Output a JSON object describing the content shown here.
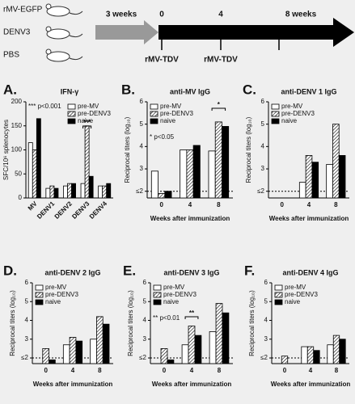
{
  "timeline": {
    "groups": [
      "rMV-EGFP",
      "DENV3",
      "PBS"
    ],
    "interval": "3 weeks",
    "weeks": [
      "0",
      "4",
      "8 weeks"
    ],
    "doses": [
      "rMV-TDV",
      "rMV-TDV"
    ]
  },
  "chart_data": [
    {
      "type": "bar",
      "letter": "A.",
      "title": "IFN-γ",
      "ylabel": "SFC/10⁶ splenocytes",
      "categories": [
        "MV",
        "DENV1",
        "DENV2",
        "DENV3",
        "DENV4"
      ],
      "legend": "top-right",
      "series": [
        {
          "name": "pre-MV",
          "color": "#ffffff",
          "hatch": false,
          "values": [
            115,
            20,
            25,
            30,
            25
          ]
        },
        {
          "name": "pre-DENV3",
          "color": "#ffffff",
          "hatch": true,
          "values": [
            100,
            25,
            30,
            150,
            25
          ]
        },
        {
          "name": "naive",
          "color": "#000000",
          "hatch": false,
          "values": [
            165,
            20,
            30,
            45,
            30
          ]
        }
      ],
      "ylim": [
        0,
        200
      ],
      "yticks": [
        0,
        50,
        100,
        150,
        200
      ],
      "annotations": [
        "*** p<0.001",
        "***"
      ]
    },
    {
      "type": "bar",
      "letter": "B.",
      "title": "anti-MV IgG",
      "ylabel": "Reciprocal titers (log₁₀)",
      "xlabel": "Weeks after immunization",
      "categories": [
        "0",
        "4",
        "8"
      ],
      "legend": "top-left",
      "series": [
        {
          "name": "pre-MV",
          "color": "#ffffff",
          "hatch": false,
          "values": [
            2.9,
            3.85,
            3.8
          ]
        },
        {
          "name": "pre-DENV3",
          "color": "#ffffff",
          "hatch": true,
          "values": [
            1.9,
            3.85,
            5.1
          ]
        },
        {
          "name": "naive",
          "color": "#000000",
          "hatch": false,
          "values": [
            2.0,
            4.05,
            4.9
          ]
        }
      ],
      "ylim": [
        1.7,
        6
      ],
      "yticks": [
        {
          "value": 2,
          "label": "≤2"
        },
        3,
        4,
        5,
        6
      ],
      "threshold": 2,
      "annotations": [
        "* p<0.05",
        "*"
      ]
    },
    {
      "type": "bar",
      "letter": "C.",
      "title": "anti-DENV 1 IgG",
      "ylabel": "Reciprocal titers (log₁₀)",
      "xlabel": "Weeks after immunization",
      "categories": [
        "0",
        "4",
        "8"
      ],
      "legend": "top-left",
      "series": [
        {
          "name": "pre-MV",
          "color": "#ffffff",
          "hatch": false,
          "values": [
            null,
            2.4,
            3.2
          ]
        },
        {
          "name": "pre-DENV3",
          "color": "#ffffff",
          "hatch": true,
          "values": [
            null,
            3.6,
            5.0
          ]
        },
        {
          "name": "naive",
          "color": "#000000",
          "hatch": false,
          "values": [
            null,
            3.3,
            3.6
          ]
        }
      ],
      "ylim": [
        1.7,
        6
      ],
      "yticks": [
        {
          "value": 2,
          "label": "≤2"
        },
        3,
        4,
        5,
        6
      ],
      "threshold": 2
    },
    {
      "type": "bar",
      "letter": "D.",
      "title": "anti-DENV 2 IgG",
      "ylabel": "Reciprocal titers (log₁₀)",
      "xlabel": "Weeks after immunization",
      "categories": [
        "0",
        "4",
        "8"
      ],
      "legend": "top-left",
      "series": [
        {
          "name": "pre-MV",
          "color": "#ffffff",
          "hatch": false,
          "values": [
            null,
            2.7,
            3.0
          ]
        },
        {
          "name": "pre-DENV3",
          "color": "#ffffff",
          "hatch": true,
          "values": [
            2.5,
            3.1,
            4.2
          ]
        },
        {
          "name": "naive",
          "color": "#000000",
          "hatch": false,
          "values": [
            1.9,
            2.9,
            3.8
          ]
        }
      ],
      "ylim": [
        1.7,
        6
      ],
      "yticks": [
        {
          "value": 2,
          "label": "≤2"
        },
        3,
        4,
        5,
        6
      ],
      "threshold": 2
    },
    {
      "type": "bar",
      "letter": "E.",
      "title": "anti-DENV 3 IgG",
      "ylabel": "Reciprocal titers (log₁₀)",
      "xlabel": "Weeks after immunization",
      "categories": [
        "0",
        "4",
        "8"
      ],
      "legend": "top-left",
      "series": [
        {
          "name": "pre-MV",
          "color": "#ffffff",
          "hatch": false,
          "values": [
            null,
            2.7,
            3.4
          ]
        },
        {
          "name": "pre-DENV3",
          "color": "#ffffff",
          "hatch": true,
          "values": [
            2.5,
            3.7,
            4.9
          ]
        },
        {
          "name": "naive",
          "color": "#000000",
          "hatch": false,
          "values": [
            1.9,
            3.2,
            4.4
          ]
        }
      ],
      "ylim": [
        1.7,
        6
      ],
      "yticks": [
        {
          "value": 2,
          "label": "≤2"
        },
        3,
        4,
        5,
        6
      ],
      "threshold": 2,
      "annotations": [
        "** p<0.01",
        "**"
      ]
    },
    {
      "type": "bar",
      "letter": "F.",
      "title": "anti-DENV 4 IgG",
      "ylabel": "Reciprocal titers (log₁₀)",
      "xlabel": "Weeks after immunization",
      "categories": [
        "0",
        "4",
        "8"
      ],
      "legend": "top-left",
      "series": [
        {
          "name": "pre-MV",
          "color": "#ffffff",
          "hatch": false,
          "values": [
            null,
            2.6,
            2.7
          ]
        },
        {
          "name": "pre-DENV3",
          "color": "#ffffff",
          "hatch": true,
          "values": [
            2.1,
            2.6,
            3.2
          ]
        },
        {
          "name": "naive",
          "color": "#000000",
          "hatch": false,
          "values": [
            null,
            2.4,
            3.0
          ]
        }
      ],
      "ylim": [
        1.7,
        6
      ],
      "yticks": [
        {
          "value": 2,
          "label": "≤2"
        },
        3,
        4,
        5,
        6
      ],
      "threshold": 2
    }
  ]
}
